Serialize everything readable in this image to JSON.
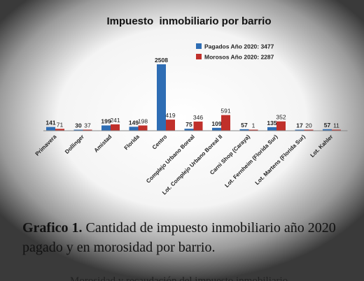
{
  "chart_data": {
    "type": "bar",
    "title": "Impuesto  inmobiliario por barrio",
    "categories": [
      "Primavera",
      "Dollinger",
      "Amistad",
      "Florida",
      "Centro",
      "Complejo Urbano Boreal",
      "Lot. Complejo Urbano Boreal II",
      "Carni Shop (Caraya)",
      "Lot. Fernheim (Florida Sur)",
      "Lot. Martens (Florida Sur)",
      "Lot. Kahler"
    ],
    "series": [
      {
        "name": "Pagados Año 2020: 3477",
        "color": "#2e6db4",
        "values": [
          141,
          30,
          199,
          149,
          2508,
          75,
          109,
          57,
          135,
          17,
          57
        ]
      },
      {
        "name": "Morosos Año 2020: 2287",
        "color": "#c0302b",
        "values": [
          71,
          37,
          241,
          198,
          419,
          346,
          591,
          1,
          352,
          20,
          11
        ]
      }
    ],
    "ylim": [
      0,
      2600
    ],
    "grid": false,
    "legend": "top-right"
  },
  "caption": {
    "label": "Grafico 1.",
    "text": " Cantidad de impuesto inmobiliario año 2020 pagado  y en morosidad por barrio."
  },
  "footer_text": "Morosidad y recaudación del impuesto inmobiliario"
}
